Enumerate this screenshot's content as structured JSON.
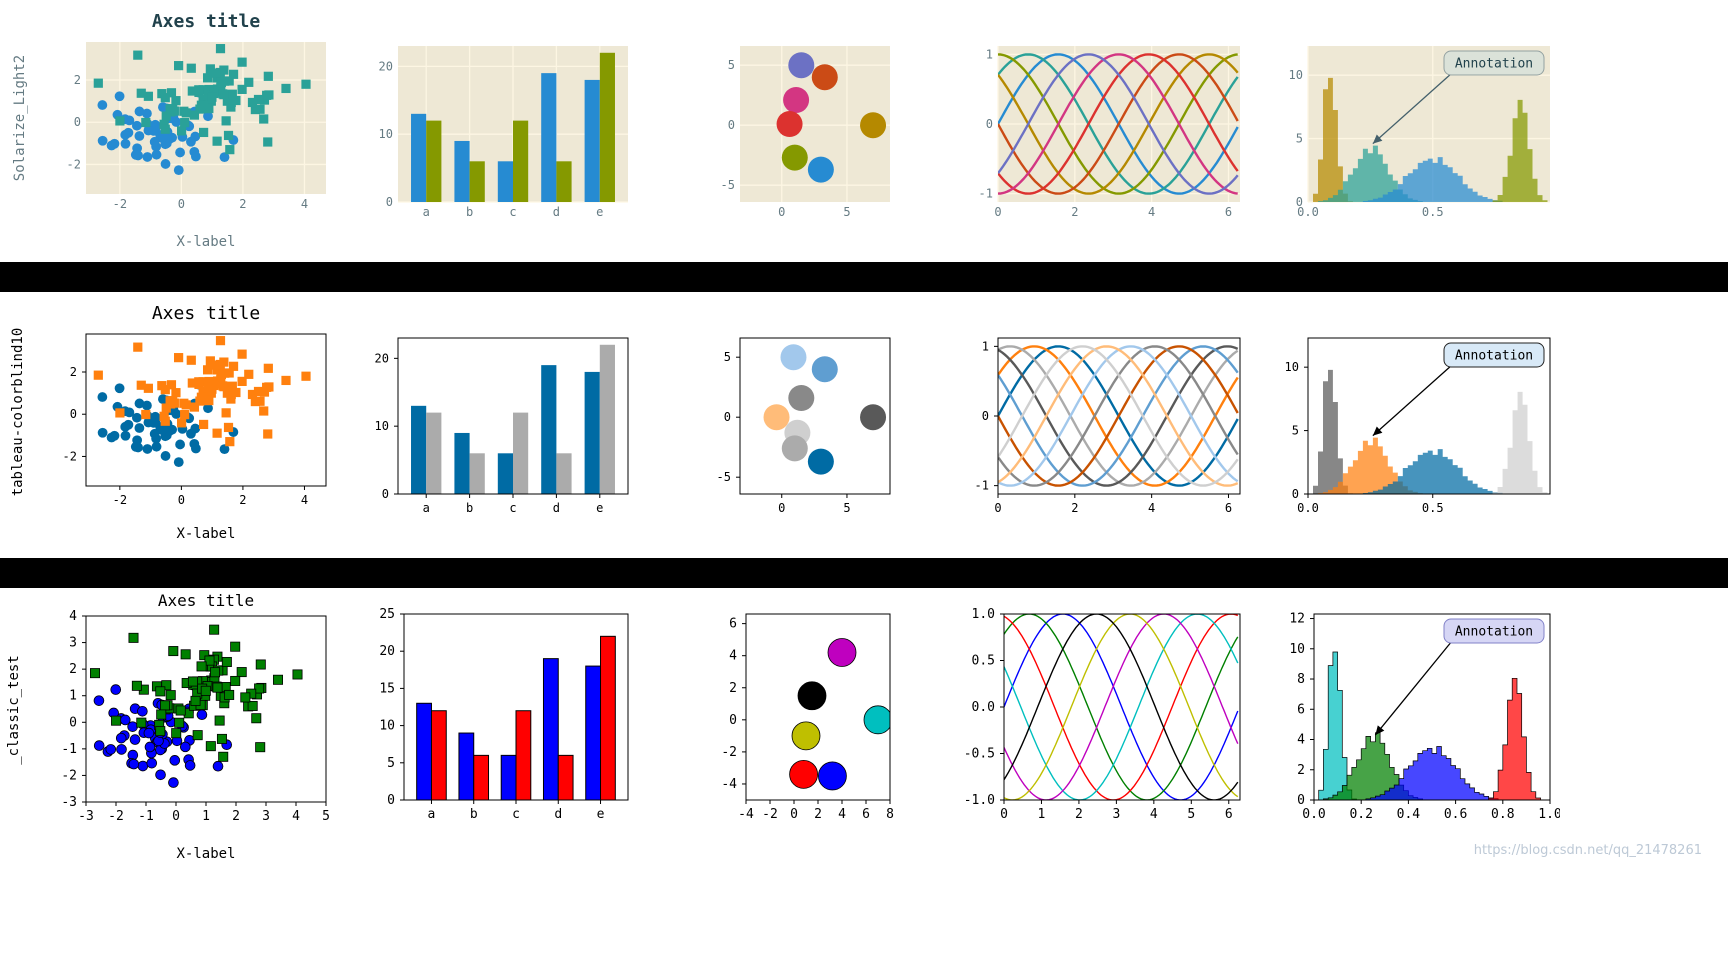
{
  "watermark": "https://blog.csdn.net/qq_21478261",
  "colors": {
    "page_bg": "#ffffff",
    "separator": "#000000"
  },
  "chart_data": {
    "rows": [
      {
        "style_label": "Solarize_Light2",
        "style": {
          "axes_bg": "#eee8d5",
          "text": "#657b83",
          "title_color": "#21424c",
          "title_bold": true,
          "grid": true,
          "grid_color": "#fdf6e3",
          "frame": false,
          "frame_color": "#657b83",
          "tick_len": 0,
          "line_width": 2.4,
          "hist_edge": false,
          "bar_edge": null,
          "marker_edge": null,
          "annotation_bg": "#dbe2d9",
          "annotation_border": "#93a1a1",
          "annotation_text": "#21424c",
          "arrow_color": "#44606b"
        },
        "charts": [
          {
            "type": "scatter",
            "title": "Axes title",
            "xlabel": "X-label",
            "xlim": [
              -3.1,
              4.7
            ],
            "ylim": [
              -3.4,
              3.8
            ],
            "xticks": [
              -2,
              0,
              2,
              4
            ],
            "yticks": [
              -2,
              0,
              2
            ],
            "clusters": [
              {
                "seed": 42,
                "n": 60,
                "cx": -0.55,
                "cy": -0.6,
                "sx": 0.9,
                "sy": 0.95,
                "marker": "circle",
                "color": "#268bd2"
              },
              {
                "seed": 7,
                "n": 78,
                "cx": 0.95,
                "cy": 0.95,
                "sx": 1.1,
                "sy": 0.9,
                "marker": "square",
                "color": "#2aa198",
                "extra": [
                  [
                    4.05,
                    1.8
                  ],
                  [
                    -2.7,
                    1.85
                  ],
                  [
                    3.4,
                    1.6
                  ]
                ]
              }
            ]
          },
          {
            "type": "bar",
            "categories": [
              "a",
              "b",
              "c",
              "d",
              "e"
            ],
            "xticks": [
              0,
              1,
              2,
              3,
              4
            ],
            "xtick_labels": [
              "a",
              "b",
              "c",
              "d",
              "e"
            ],
            "xlim": [
              -0.65,
              4.65
            ],
            "ylim": [
              0,
              23
            ],
            "yticks": [
              0,
              10,
              20
            ],
            "series": [
              {
                "color": "#268bd2",
                "values": [
                  13,
                  9,
                  6,
                  19,
                  18
                ]
              },
              {
                "color": "#859900",
                "values": [
                  12,
                  6,
                  12,
                  6,
                  22
                ]
              }
            ]
          },
          {
            "type": "bubble",
            "xlim": [
              -3.2,
              8.3
            ],
            "ylim": [
              -6.4,
              6.6
            ],
            "xticks": [
              0,
              5
            ],
            "yticks": [
              -5,
              0,
              5
            ],
            "radius": 13,
            "points": [
              [
                1.5,
                5,
                "#6c71c4"
              ],
              [
                3.3,
                4,
                "#cb4b16"
              ],
              [
                1.1,
                2.1,
                "#d33682"
              ],
              [
                0.6,
                0.1,
                "#dc322f"
              ],
              [
                7,
                0,
                "#b58900"
              ],
              [
                1.0,
                -2.7,
                "#859900"
              ],
              [
                3.0,
                -3.7,
                "#268bd2"
              ]
            ]
          },
          {
            "type": "sine",
            "n": 8,
            "xlim": [
              0,
              6.3
            ],
            "ylim": [
              -1.12,
              1.12
            ],
            "xticks": [
              0,
              2,
              4,
              6
            ],
            "yticks": [
              -1,
              0,
              1
            ],
            "colors": [
              "#268bd2",
              "#2aa198",
              "#859900",
              "#b58900",
              "#cb4b16",
              "#dc322f",
              "#d33682",
              "#6c71c4"
            ]
          },
          {
            "type": "hist",
            "xlim": [
              0,
              0.97
            ],
            "ylim": [
              0,
              12.3
            ],
            "xticks": [
              0,
              0.5
            ],
            "xtick_labels": [
              "0.0",
              "0.5"
            ],
            "yticks": [
              0,
              5,
              10
            ],
            "components": [
              {
                "c": 0.09,
                "s": 0.025,
                "h": 11,
                "color": "#b58900"
              },
              {
                "c": 0.25,
                "s": 0.07,
                "h": 4.2,
                "color": "#2aa198"
              },
              {
                "c": 0.5,
                "s": 0.1,
                "h": 3.4,
                "color": "#268bd2"
              },
              {
                "c": 0.85,
                "s": 0.035,
                "h": 7.8,
                "color": "#859900"
              }
            ],
            "annotation": {
              "label": "Annotation",
              "target": [
                0.26,
                4.6
              ]
            }
          }
        ]
      },
      {
        "style_label": "tableau-colorblind10",
        "style": {
          "axes_bg": "#ffffff",
          "text": "#000000",
          "title_color": "#000000",
          "title_bold": false,
          "grid": false,
          "grid_color": "#ffffff",
          "frame": true,
          "frame_color": "#000000",
          "tick_len": 4,
          "line_width": 2.4,
          "hist_edge": false,
          "bar_edge": null,
          "marker_edge": null,
          "annotation_bg": "#d8e9f7",
          "annotation_border": "#222222",
          "annotation_text": "#000000",
          "arrow_color": "#000000"
        },
        "charts": [
          {
            "type": "scatter",
            "title": "Axes title",
            "xlabel": "X-label",
            "xlim": [
              -3.1,
              4.7
            ],
            "ylim": [
              -3.4,
              3.8
            ],
            "xticks": [
              -2,
              0,
              2,
              4
            ],
            "yticks": [
              -2,
              0,
              2
            ],
            "clusters": [
              {
                "seed": 42,
                "n": 60,
                "cx": -0.55,
                "cy": -0.6,
                "sx": 0.9,
                "sy": 0.95,
                "marker": "circle",
                "color": "#006BA4"
              },
              {
                "seed": 7,
                "n": 78,
                "cx": 0.95,
                "cy": 0.95,
                "sx": 1.1,
                "sy": 0.9,
                "marker": "square",
                "color": "#FF800E",
                "extra": [
                  [
                    4.05,
                    1.8
                  ],
                  [
                    -2.7,
                    1.85
                  ],
                  [
                    3.4,
                    1.6
                  ]
                ]
              }
            ]
          },
          {
            "type": "bar",
            "categories": [
              "a",
              "b",
              "c",
              "d",
              "e"
            ],
            "xticks": [
              0,
              1,
              2,
              3,
              4
            ],
            "xtick_labels": [
              "a",
              "b",
              "c",
              "d",
              "e"
            ],
            "xlim": [
              -0.65,
              4.65
            ],
            "ylim": [
              0,
              23
            ],
            "yticks": [
              0,
              10,
              20
            ],
            "series": [
              {
                "color": "#006BA4",
                "values": [
                  13,
                  9,
                  6,
                  19,
                  18
                ]
              },
              {
                "color": "#ABABAB",
                "values": [
                  12,
                  6,
                  12,
                  6,
                  22
                ]
              }
            ]
          },
          {
            "type": "bubble",
            "xlim": [
              -3.2,
              8.3
            ],
            "ylim": [
              -6.4,
              6.6
            ],
            "xticks": [
              0,
              5
            ],
            "yticks": [
              -5,
              0,
              5
            ],
            "radius": 13,
            "points": [
              [
                0.9,
                5,
                "#A2C8EC"
              ],
              [
                3.3,
                4,
                "#5F9ED1"
              ],
              [
                1.5,
                1.6,
                "#898989"
              ],
              [
                -0.4,
                0,
                "#FFBC79"
              ],
              [
                7,
                0,
                "#595959"
              ],
              [
                1.2,
                -1.3,
                "#CFCFCF"
              ],
              [
                1.0,
                -2.6,
                "#ABABAB"
              ],
              [
                3.0,
                -3.7,
                "#006BA4"
              ]
            ]
          },
          {
            "type": "sine",
            "n": 10,
            "xlim": [
              0,
              6.3
            ],
            "ylim": [
              -1.12,
              1.12
            ],
            "xticks": [
              0,
              2,
              4,
              6
            ],
            "yticks": [
              -1,
              0,
              1
            ],
            "colors": [
              "#006BA4",
              "#FF800E",
              "#ABABAB",
              "#595959",
              "#5F9ED1",
              "#C85200",
              "#898989",
              "#A2C8EC",
              "#FFBC79",
              "#CFCFCF"
            ]
          },
          {
            "type": "hist",
            "xlim": [
              0,
              0.97
            ],
            "ylim": [
              0,
              12.3
            ],
            "xticks": [
              0,
              0.5
            ],
            "xtick_labels": [
              "0.0",
              "0.5"
            ],
            "yticks": [
              0,
              5,
              10
            ],
            "components": [
              {
                "c": 0.09,
                "s": 0.025,
                "h": 11,
                "color": "#595959"
              },
              {
                "c": 0.25,
                "s": 0.07,
                "h": 4.2,
                "color": "#FF800E"
              },
              {
                "c": 0.5,
                "s": 0.1,
                "h": 3.4,
                "color": "#006BA4"
              },
              {
                "c": 0.85,
                "s": 0.035,
                "h": 7.8,
                "color": "#CFCFCF"
              }
            ],
            "annotation": {
              "label": "Annotation",
              "target": [
                0.26,
                4.6
              ]
            }
          }
        ]
      },
      {
        "style_label": "_classic_test",
        "style": {
          "axes_bg": "#ffffff",
          "text": "#000000",
          "title_color": "#000000",
          "title_bold": false,
          "grid": false,
          "grid_color": "#ffffff",
          "frame": true,
          "frame_color": "#000000",
          "tick_len": 4,
          "line_width": 1.4,
          "hist_edge": true,
          "bar_edge": "#000000",
          "marker_edge": "#000000",
          "annotation_bg": "#d6d6f5",
          "annotation_border": "#8181c8",
          "annotation_text": "#000000",
          "arrow_color": "#000000"
        },
        "charts": [
          {
            "type": "scatter",
            "title": "Axes title",
            "xlabel": "X-label",
            "xlim": [
              -3,
              5
            ],
            "ylim": [
              -3,
              4
            ],
            "xticks": [
              -3,
              -2,
              -1,
              0,
              1,
              2,
              3,
              4,
              5
            ],
            "yticks": [
              -3,
              -2,
              -1,
              0,
              1,
              2,
              3,
              4
            ],
            "clusters": [
              {
                "seed": 42,
                "n": 60,
                "cx": -0.55,
                "cy": -0.6,
                "sx": 0.9,
                "sy": 0.95,
                "marker": "circle",
                "color": "#0000ff"
              },
              {
                "seed": 7,
                "n": 78,
                "cx": 0.95,
                "cy": 0.95,
                "sx": 1.1,
                "sy": 0.9,
                "marker": "square",
                "color": "#008000",
                "extra": [
                  [
                    4.05,
                    1.8
                  ],
                  [
                    -2.7,
                    1.85
                  ],
                  [
                    3.4,
                    1.6
                  ]
                ]
              }
            ]
          },
          {
            "type": "bar",
            "categories": [
              "a",
              "b",
              "c",
              "d",
              "e"
            ],
            "xticks": [
              0,
              1,
              2,
              3,
              4
            ],
            "xtick_labels": [
              "a",
              "b",
              "c",
              "d",
              "e"
            ],
            "xlim": [
              -0.65,
              4.65
            ],
            "ylim": [
              0,
              25
            ],
            "yticks": [
              0,
              5,
              10,
              15,
              20,
              25
            ],
            "series": [
              {
                "color": "#0000ff",
                "values": [
                  13,
                  9,
                  6,
                  19,
                  18
                ]
              },
              {
                "color": "#ff0000",
                "values": [
                  12,
                  6,
                  12,
                  6,
                  22
                ]
              }
            ]
          },
          {
            "type": "bubble",
            "xlim": [
              -4,
              8
            ],
            "ylim": [
              -5,
              6.6
            ],
            "xticks": [
              -4,
              -2,
              0,
              2,
              4,
              6,
              8
            ],
            "yticks": [
              -4,
              -2,
              0,
              2,
              4,
              6
            ],
            "radius": 14,
            "points": [
              [
                4,
                4.2,
                "#bf00bf"
              ],
              [
                1.5,
                1.5,
                "#000000"
              ],
              [
                7,
                0,
                "#00bfbf"
              ],
              [
                1,
                -1,
                "#bfbf00"
              ],
              [
                0.8,
                -3.4,
                "#ff0000"
              ],
              [
                3.2,
                -3.5,
                "#0000ff"
              ]
            ]
          },
          {
            "type": "sine",
            "n": 7,
            "xlim": [
              0,
              6.3
            ],
            "ylim": [
              -1,
              1
            ],
            "xticks": [
              0,
              1,
              2,
              3,
              4,
              5,
              6
            ],
            "yticks": [
              -1,
              -0.5,
              0,
              0.5,
              1
            ],
            "ytick_labels": [
              "-1.0",
              "-0.5",
              "0.0",
              "0.5",
              "1.0"
            ],
            "colors": [
              "#0000ff",
              "#008000",
              "#ff0000",
              "#00bfbf",
              "#bf00bf",
              "#bfbf00",
              "#000000"
            ]
          },
          {
            "type": "hist",
            "xlim": [
              0,
              1
            ],
            "ylim": [
              0,
              12.3
            ],
            "xticks": [
              0,
              0.2,
              0.4,
              0.6,
              0.8,
              1
            ],
            "xtick_labels": [
              "0.0",
              "0.2",
              "0.4",
              "0.6",
              "0.8",
              "1.0"
            ],
            "yticks": [
              0,
              2,
              4,
              6,
              8,
              10,
              12
            ],
            "components": [
              {
                "c": 0.09,
                "s": 0.025,
                "h": 11,
                "color": "#00bfbf"
              },
              {
                "c": 0.25,
                "s": 0.07,
                "h": 4.2,
                "color": "#008000"
              },
              {
                "c": 0.5,
                "s": 0.1,
                "h": 3.4,
                "color": "#0000ff"
              },
              {
                "c": 0.85,
                "s": 0.035,
                "h": 7.8,
                "color": "#ff0000"
              }
            ],
            "annotation": {
              "label": "Annotation",
              "target": [
                0.26,
                4.3
              ]
            }
          }
        ]
      }
    ]
  }
}
